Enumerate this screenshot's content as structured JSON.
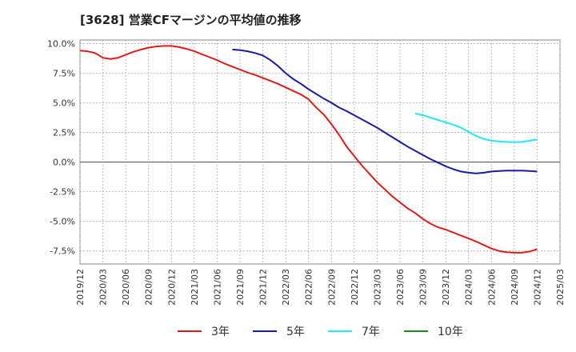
{
  "chart_data": {
    "type": "line",
    "title": "[3628]  営業CFマージンの平均値の推移",
    "xlabel": "",
    "ylabel": "",
    "x_tick_labels": [
      "2019/12",
      "2020/03",
      "2020/06",
      "2020/09",
      "2020/12",
      "2021/03",
      "2021/06",
      "2021/09",
      "2021/12",
      "2022/03",
      "2022/06",
      "2022/09",
      "2022/12",
      "2023/03",
      "2023/06",
      "2023/09",
      "2023/12",
      "2024/03",
      "2024/06",
      "2024/09",
      "2024/12",
      "2025/03"
    ],
    "y_ticks": [
      10.0,
      7.5,
      5.0,
      2.5,
      0.0,
      -2.5,
      -5.0,
      -7.5
    ],
    "y_tick_labels": [
      "10.0%",
      "7.5%",
      "5.0%",
      "2.5%",
      "0.0%",
      "-2.5%",
      "-5.0%",
      "-7.5%"
    ],
    "ylim": [
      -8.6,
      10.3
    ],
    "grid": true,
    "legend_position": "bottom",
    "series": [
      {
        "name": "3年",
        "color": "#e31a1c",
        "points": [
          [
            "2019/12",
            9.4
          ],
          [
            "2020/01",
            9.35
          ],
          [
            "2020/02",
            9.2
          ],
          [
            "2020/03",
            8.8
          ],
          [
            "2020/04",
            8.7
          ],
          [
            "2020/05",
            8.8
          ],
          [
            "2020/06",
            9.05
          ],
          [
            "2020/07",
            9.3
          ],
          [
            "2020/08",
            9.5
          ],
          [
            "2020/09",
            9.65
          ],
          [
            "2020/10",
            9.75
          ],
          [
            "2020/11",
            9.8
          ],
          [
            "2020/12",
            9.8
          ],
          [
            "2021/01",
            9.7
          ],
          [
            "2021/02",
            9.55
          ],
          [
            "2021/03",
            9.35
          ],
          [
            "2021/04",
            9.1
          ],
          [
            "2021/05",
            8.85
          ],
          [
            "2021/06",
            8.6
          ],
          [
            "2021/07",
            8.3
          ],
          [
            "2021/08",
            8.05
          ],
          [
            "2021/09",
            7.8
          ],
          [
            "2021/10",
            7.55
          ],
          [
            "2021/11",
            7.35
          ],
          [
            "2021/12",
            7.1
          ],
          [
            "2022/01",
            6.85
          ],
          [
            "2022/02",
            6.6
          ],
          [
            "2022/03",
            6.3
          ],
          [
            "2022/04",
            6.0
          ],
          [
            "2022/05",
            5.7
          ],
          [
            "2022/06",
            5.3
          ],
          [
            "2022/07",
            4.6
          ],
          [
            "2022/08",
            4.0
          ],
          [
            "2022/09",
            3.2
          ],
          [
            "2022/10",
            2.3
          ],
          [
            "2022/11",
            1.3
          ],
          [
            "2022/12",
            0.5
          ],
          [
            "2023/01",
            -0.3
          ],
          [
            "2023/02",
            -1.0
          ],
          [
            "2023/03",
            -1.7
          ],
          [
            "2023/04",
            -2.3
          ],
          [
            "2023/05",
            -2.9
          ],
          [
            "2023/06",
            -3.4
          ],
          [
            "2023/07",
            -3.9
          ],
          [
            "2023/08",
            -4.3
          ],
          [
            "2023/09",
            -4.8
          ],
          [
            "2023/10",
            -5.2
          ],
          [
            "2023/11",
            -5.5
          ],
          [
            "2023/12",
            -5.7
          ],
          [
            "2024/01",
            -5.95
          ],
          [
            "2024/02",
            -6.2
          ],
          [
            "2024/03",
            -6.45
          ],
          [
            "2024/04",
            -6.7
          ],
          [
            "2024/05",
            -7.0
          ],
          [
            "2024/06",
            -7.3
          ],
          [
            "2024/07",
            -7.5
          ],
          [
            "2024/08",
            -7.6
          ],
          [
            "2024/09",
            -7.65
          ],
          [
            "2024/10",
            -7.65
          ],
          [
            "2024/11",
            -7.55
          ],
          [
            "2024/12",
            -7.35
          ]
        ]
      },
      {
        "name": "5年",
        "color": "#1a1aa8",
        "points": [
          [
            "2021/08",
            9.5
          ],
          [
            "2021/09",
            9.45
          ],
          [
            "2021/10",
            9.35
          ],
          [
            "2021/11",
            9.2
          ],
          [
            "2021/12",
            9.0
          ],
          [
            "2022/01",
            8.6
          ],
          [
            "2022/02",
            8.1
          ],
          [
            "2022/03",
            7.5
          ],
          [
            "2022/04",
            7.0
          ],
          [
            "2022/05",
            6.6
          ],
          [
            "2022/06",
            6.15
          ],
          [
            "2022/07",
            5.75
          ],
          [
            "2022/08",
            5.35
          ],
          [
            "2022/09",
            5.0
          ],
          [
            "2022/10",
            4.6
          ],
          [
            "2022/11",
            4.3
          ],
          [
            "2022/12",
            3.95
          ],
          [
            "2023/01",
            3.6
          ],
          [
            "2023/02",
            3.25
          ],
          [
            "2023/03",
            2.9
          ],
          [
            "2023/04",
            2.5
          ],
          [
            "2023/05",
            2.1
          ],
          [
            "2023/06",
            1.7
          ],
          [
            "2023/07",
            1.3
          ],
          [
            "2023/08",
            0.95
          ],
          [
            "2023/09",
            0.6
          ],
          [
            "2023/10",
            0.25
          ],
          [
            "2023/11",
            -0.05
          ],
          [
            "2023/12",
            -0.35
          ],
          [
            "2024/01",
            -0.6
          ],
          [
            "2024/02",
            -0.8
          ],
          [
            "2024/03",
            -0.9
          ],
          [
            "2024/04",
            -0.95
          ],
          [
            "2024/05",
            -0.9
          ],
          [
            "2024/06",
            -0.8
          ],
          [
            "2024/07",
            -0.75
          ],
          [
            "2024/08",
            -0.72
          ],
          [
            "2024/09",
            -0.72
          ],
          [
            "2024/10",
            -0.72
          ],
          [
            "2024/11",
            -0.75
          ],
          [
            "2024/12",
            -0.8
          ]
        ]
      },
      {
        "name": "7年",
        "color": "#22e8f0",
        "points": [
          [
            "2023/08",
            4.1
          ],
          [
            "2023/09",
            3.95
          ],
          [
            "2023/10",
            3.75
          ],
          [
            "2023/11",
            3.55
          ],
          [
            "2023/12",
            3.35
          ],
          [
            "2024/01",
            3.15
          ],
          [
            "2024/02",
            2.9
          ],
          [
            "2024/03",
            2.55
          ],
          [
            "2024/04",
            2.2
          ],
          [
            "2024/05",
            1.95
          ],
          [
            "2024/06",
            1.8
          ],
          [
            "2024/07",
            1.75
          ],
          [
            "2024/08",
            1.7
          ],
          [
            "2024/09",
            1.68
          ],
          [
            "2024/10",
            1.7
          ],
          [
            "2024/11",
            1.8
          ],
          [
            "2024/12",
            1.9
          ]
        ]
      },
      {
        "name": "10年",
        "color": "#1e8a1e",
        "points": []
      }
    ]
  }
}
